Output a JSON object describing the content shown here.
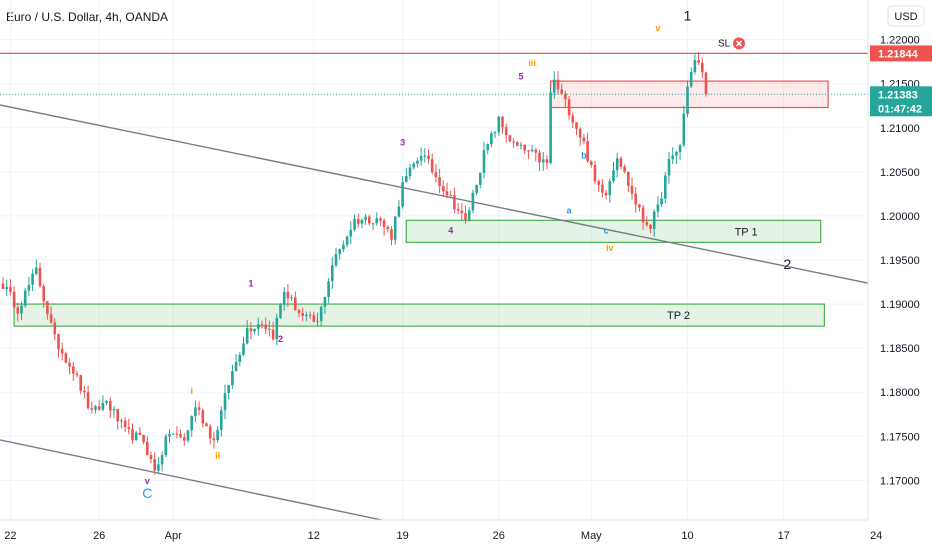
{
  "header": {
    "title": "Euro / U.S. Dollar, 4h, OANDA"
  },
  "currency": "USD",
  "colors": {
    "up": "#26a69a",
    "down": "#ef5350",
    "sl": "#ef5350",
    "tp": "#4caf50",
    "channel": "#787b86",
    "price_badge": "#26a69a"
  },
  "icons": {
    "sl_close": "close-circle-icon"
  },
  "chart_data": {
    "type": "candlestick",
    "title": "Euro / U.S. Dollar, 4h, OANDA",
    "ylim": [
      1.1655,
      1.2245
    ],
    "y_ticks": [
      1.22,
      1.215,
      1.21,
      1.205,
      1.2,
      1.195,
      1.19,
      1.185,
      1.18,
      1.175,
      1.17
    ],
    "y_tick_labels": [
      "1.22000",
      "1.21500",
      "1.21000",
      "1.20500",
      "1.20000",
      "1.19500",
      "1.19000",
      "1.18500",
      "1.18000",
      "1.17500",
      "1.17000"
    ],
    "x_ticks": [
      {
        "label": "22",
        "bar": 2
      },
      {
        "label": "26",
        "bar": 26
      },
      {
        "label": "Apr",
        "bar": 46
      },
      {
        "label": "12",
        "bar": 84
      },
      {
        "label": "19",
        "bar": 108
      },
      {
        "label": "26",
        "bar": 134
      },
      {
        "label": "May",
        "bar": 159
      },
      {
        "label": "10",
        "bar": 185
      },
      {
        "label": "17",
        "bar": 211
      },
      {
        "label": "24",
        "bar": 236
      }
    ],
    "anchors": [
      [
        0,
        1.1922
      ],
      [
        4,
        1.1895
      ],
      [
        9,
        1.1938
      ],
      [
        14,
        1.186
      ],
      [
        19,
        1.1825
      ],
      [
        24,
        1.1775
      ],
      [
        28,
        1.179
      ],
      [
        33,
        1.1755
      ],
      [
        38,
        1.1745
      ],
      [
        41,
        1.171
      ],
      [
        45,
        1.1755
      ],
      [
        49,
        1.1745
      ],
      [
        52,
        1.1785
      ],
      [
        57,
        1.1745
      ],
      [
        61,
        1.181
      ],
      [
        66,
        1.1872
      ],
      [
        70,
        1.188
      ],
      [
        73,
        1.1865
      ],
      [
        76,
        1.1915
      ],
      [
        81,
        1.1885
      ],
      [
        85,
        1.1878
      ],
      [
        89,
        1.1945
      ],
      [
        95,
        1.1995
      ],
      [
        101,
        1.1998
      ],
      [
        105,
        1.1978
      ],
      [
        108,
        1.2035
      ],
      [
        113,
        1.2072
      ],
      [
        117,
        1.2045
      ],
      [
        121,
        1.202
      ],
      [
        125,
        1.1993
      ],
      [
        130,
        1.207
      ],
      [
        134,
        1.2108
      ],
      [
        138,
        1.208
      ],
      [
        143,
        1.207
      ],
      [
        147,
        1.2058
      ],
      [
        148,
        1.214
      ],
      [
        149,
        1.2152
      ],
      [
        153,
        1.212
      ],
      [
        157,
        1.2082
      ],
      [
        160,
        1.2038
      ],
      [
        163,
        1.2028
      ],
      [
        166,
        1.207
      ],
      [
        170,
        1.2025
      ],
      [
        173,
        1.1995
      ],
      [
        175,
        1.199
      ],
      [
        177,
        1.2008
      ],
      [
        180,
        1.206
      ],
      [
        183,
        1.208
      ],
      [
        185,
        1.215
      ],
      [
        187,
        1.2175
      ],
      [
        189,
        1.2165
      ],
      [
        190,
        1.2138
      ]
    ],
    "last_price": "1.21383",
    "countdown": "01:47:42",
    "stop_loss": {
      "label": "SL",
      "price": 1.21844,
      "price_label": "1.21844"
    },
    "zones": [
      {
        "label": "",
        "x0": 148,
        "x1": 223,
        "y0": 1.2123,
        "y1": 1.2153,
        "color": "red"
      },
      {
        "label": "TP 1",
        "x0": 109,
        "x1": 221,
        "y0": 1.197,
        "y1": 1.1995,
        "color": "green"
      },
      {
        "label": "TP 2",
        "x0": 3,
        "x1": 222,
        "y0": 1.1875,
        "y1": 1.19,
        "color": "green"
      }
    ],
    "channel_lines": [
      {
        "x0": -1,
        "y0": 1.2126,
        "x1": 244,
        "y1": 1.1915
      },
      {
        "x0": -1,
        "y0": 1.1746,
        "x1": 108,
        "y1": 1.165
      }
    ],
    "wave_labels": [
      {
        "text": "1",
        "x": 185,
        "y": 1.2222,
        "color": "#131722",
        "size": 14
      },
      {
        "text": "2",
        "x": 212,
        "y": 1.194,
        "color": "#131722",
        "size": 14
      },
      {
        "text": "C",
        "x": 39,
        "y": 1.168,
        "color": "#2196f3",
        "size": 14
      },
      {
        "text": "v",
        "x": 39,
        "y": 1.1696,
        "color": "#9c27b0",
        "size": 9
      },
      {
        "text": "1",
        "x": 67,
        "y": 1.192,
        "color": "#9c27b0",
        "size": 9
      },
      {
        "text": "2",
        "x": 75,
        "y": 1.1857,
        "color": "#9c27b0",
        "size": 9
      },
      {
        "text": "3",
        "x": 108,
        "y": 1.208,
        "color": "#9c27b0",
        "size": 9
      },
      {
        "text": "4",
        "x": 121,
        "y": 1.198,
        "color": "#9c27b0",
        "size": 9
      },
      {
        "text": "5",
        "x": 140,
        "y": 1.2155,
        "color": "#9c27b0",
        "size": 9
      },
      {
        "text": "i",
        "x": 51,
        "y": 1.1798,
        "color": "#ff9800",
        "size": 9
      },
      {
        "text": "ii",
        "x": 58,
        "y": 1.1725,
        "color": "#ff9800",
        "size": 9
      },
      {
        "text": "iii",
        "x": 143,
        "y": 1.217,
        "color": "#ff9800",
        "size": 9
      },
      {
        "text": "iv",
        "x": 164,
        "y": 1.196,
        "color": "#ff9800",
        "size": 9
      },
      {
        "text": "v",
        "x": 177,
        "y": 1.221,
        "color": "#ff9800",
        "size": 9
      },
      {
        "text": "a",
        "x": 153,
        "y": 1.2003,
        "color": "#2196f3",
        "size": 9
      },
      {
        "text": "b",
        "x": 157,
        "y": 1.2065,
        "color": "#2196f3",
        "size": 9
      },
      {
        "text": "c",
        "x": 163,
        "y": 1.198,
        "color": "#2196f3",
        "size": 9
      }
    ]
  }
}
